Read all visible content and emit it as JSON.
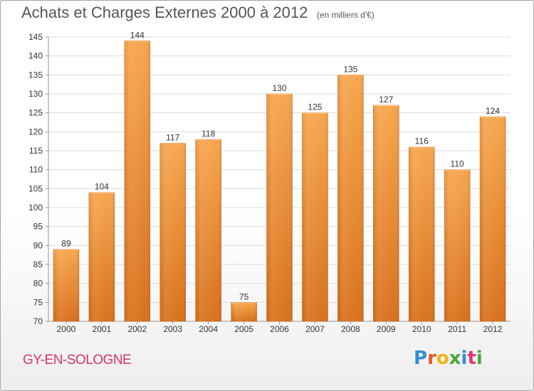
{
  "chart_title": "Achats et Charges Externes 2000 à 2012",
  "chart_subtitle": "(en milliers d'€)",
  "commune": "GY-EN-SOLOGNE",
  "logo_text": "Proxiti",
  "colors": {
    "bar_top": "#f7a64e",
    "bar_bottom": "#d8711d",
    "commune": "#d6336c",
    "grid": "#dddddd",
    "axis": "#999999",
    "text": "#333333"
  },
  "chart_data": {
    "type": "bar",
    "title": "Achats et Charges Externes 2000 à 2012",
    "subtitle": "(en milliers d'€)",
    "categories": [
      "2000",
      "2001",
      "2002",
      "2003",
      "2004",
      "2005",
      "2006",
      "2007",
      "2008",
      "2009",
      "2010",
      "2011",
      "2012"
    ],
    "values": [
      89,
      104,
      144,
      117,
      118,
      75,
      130,
      125,
      135,
      127,
      116,
      110,
      124
    ],
    "ylim": [
      70,
      145
    ],
    "yticks": [
      70,
      75,
      80,
      85,
      90,
      95,
      100,
      105,
      110,
      115,
      120,
      125,
      130,
      135,
      140,
      145
    ],
    "grid": true,
    "legend": "none",
    "xlabel": "",
    "ylabel": ""
  }
}
